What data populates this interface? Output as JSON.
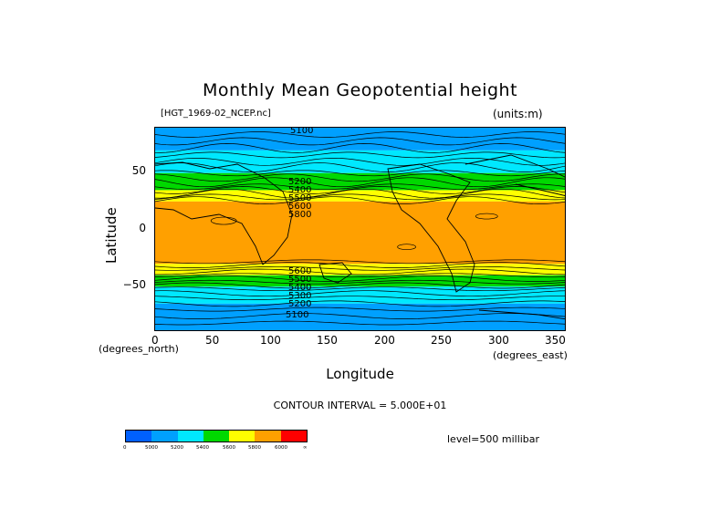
{
  "title": "Monthly Mean Geopotential height",
  "file_label": "[HGT_1969-02_NCEP.nc]",
  "units_label": "(units:m)",
  "axes": {
    "ylabel": "Latitude",
    "xlabel": "Longitude",
    "yunit": "(degrees_north)",
    "xunit": "(degrees_east)",
    "yticks": [
      "50",
      "0",
      "−50"
    ],
    "xticks": [
      "0",
      "50",
      "100",
      "150",
      "200",
      "250",
      "300",
      "350"
    ]
  },
  "contour_interval": "CONTOUR INTERVAL = 5.000E+01",
  "level": "level=500 millibar",
  "contour_labels": {
    "top": "5100",
    "bottom": "5100",
    "north_stack": [
      "5200",
      "5400",
      "5500",
      "5600",
      "5800"
    ],
    "south_stack": [
      "5600",
      "5500",
      "5400",
      "5300",
      "5200"
    ]
  },
  "colorbar": {
    "colors": [
      "#0060ff",
      "#00a0ff",
      "#00e8ff",
      "#00d800",
      "#ffff00",
      "#ffa000",
      "#ff0000"
    ],
    "labels": [
      "0",
      "5000",
      "5200",
      "5400",
      "5600",
      "5800",
      "6000",
      "∞"
    ]
  },
  "chart_data": {
    "type": "heatmap",
    "variable": "Geopotential height",
    "units": "m",
    "level_mb": 500,
    "x_range": [
      0,
      360
    ],
    "y_range": [
      -90,
      90
    ],
    "contour_interval": 50,
    "levels": [
      0,
      5000,
      5200,
      5400,
      5600,
      5800,
      6000
    ],
    "latitude_bands": [
      {
        "lat": [
          70,
          90
        ],
        "value_range": [
          5000,
          5200
        ]
      },
      {
        "lat": [
          50,
          70
        ],
        "value_range": [
          5200,
          5400
        ]
      },
      {
        "lat": [
          35,
          50
        ],
        "value_range": [
          5400,
          5600
        ]
      },
      {
        "lat": [
          25,
          35
        ],
        "value_range": [
          5600,
          5800
        ]
      },
      {
        "lat": [
          -30,
          25
        ],
        "value_range": [
          5800,
          6000
        ]
      },
      {
        "lat": [
          -40,
          -30
        ],
        "value_range": [
          5600,
          5800
        ]
      },
      {
        "lat": [
          -50,
          -40
        ],
        "value_range": [
          5400,
          5600
        ]
      },
      {
        "lat": [
          -65,
          -50
        ],
        "value_range": [
          5200,
          5400
        ]
      },
      {
        "lat": [
          -90,
          -65
        ],
        "value_range": [
          5000,
          5200
        ]
      }
    ]
  }
}
